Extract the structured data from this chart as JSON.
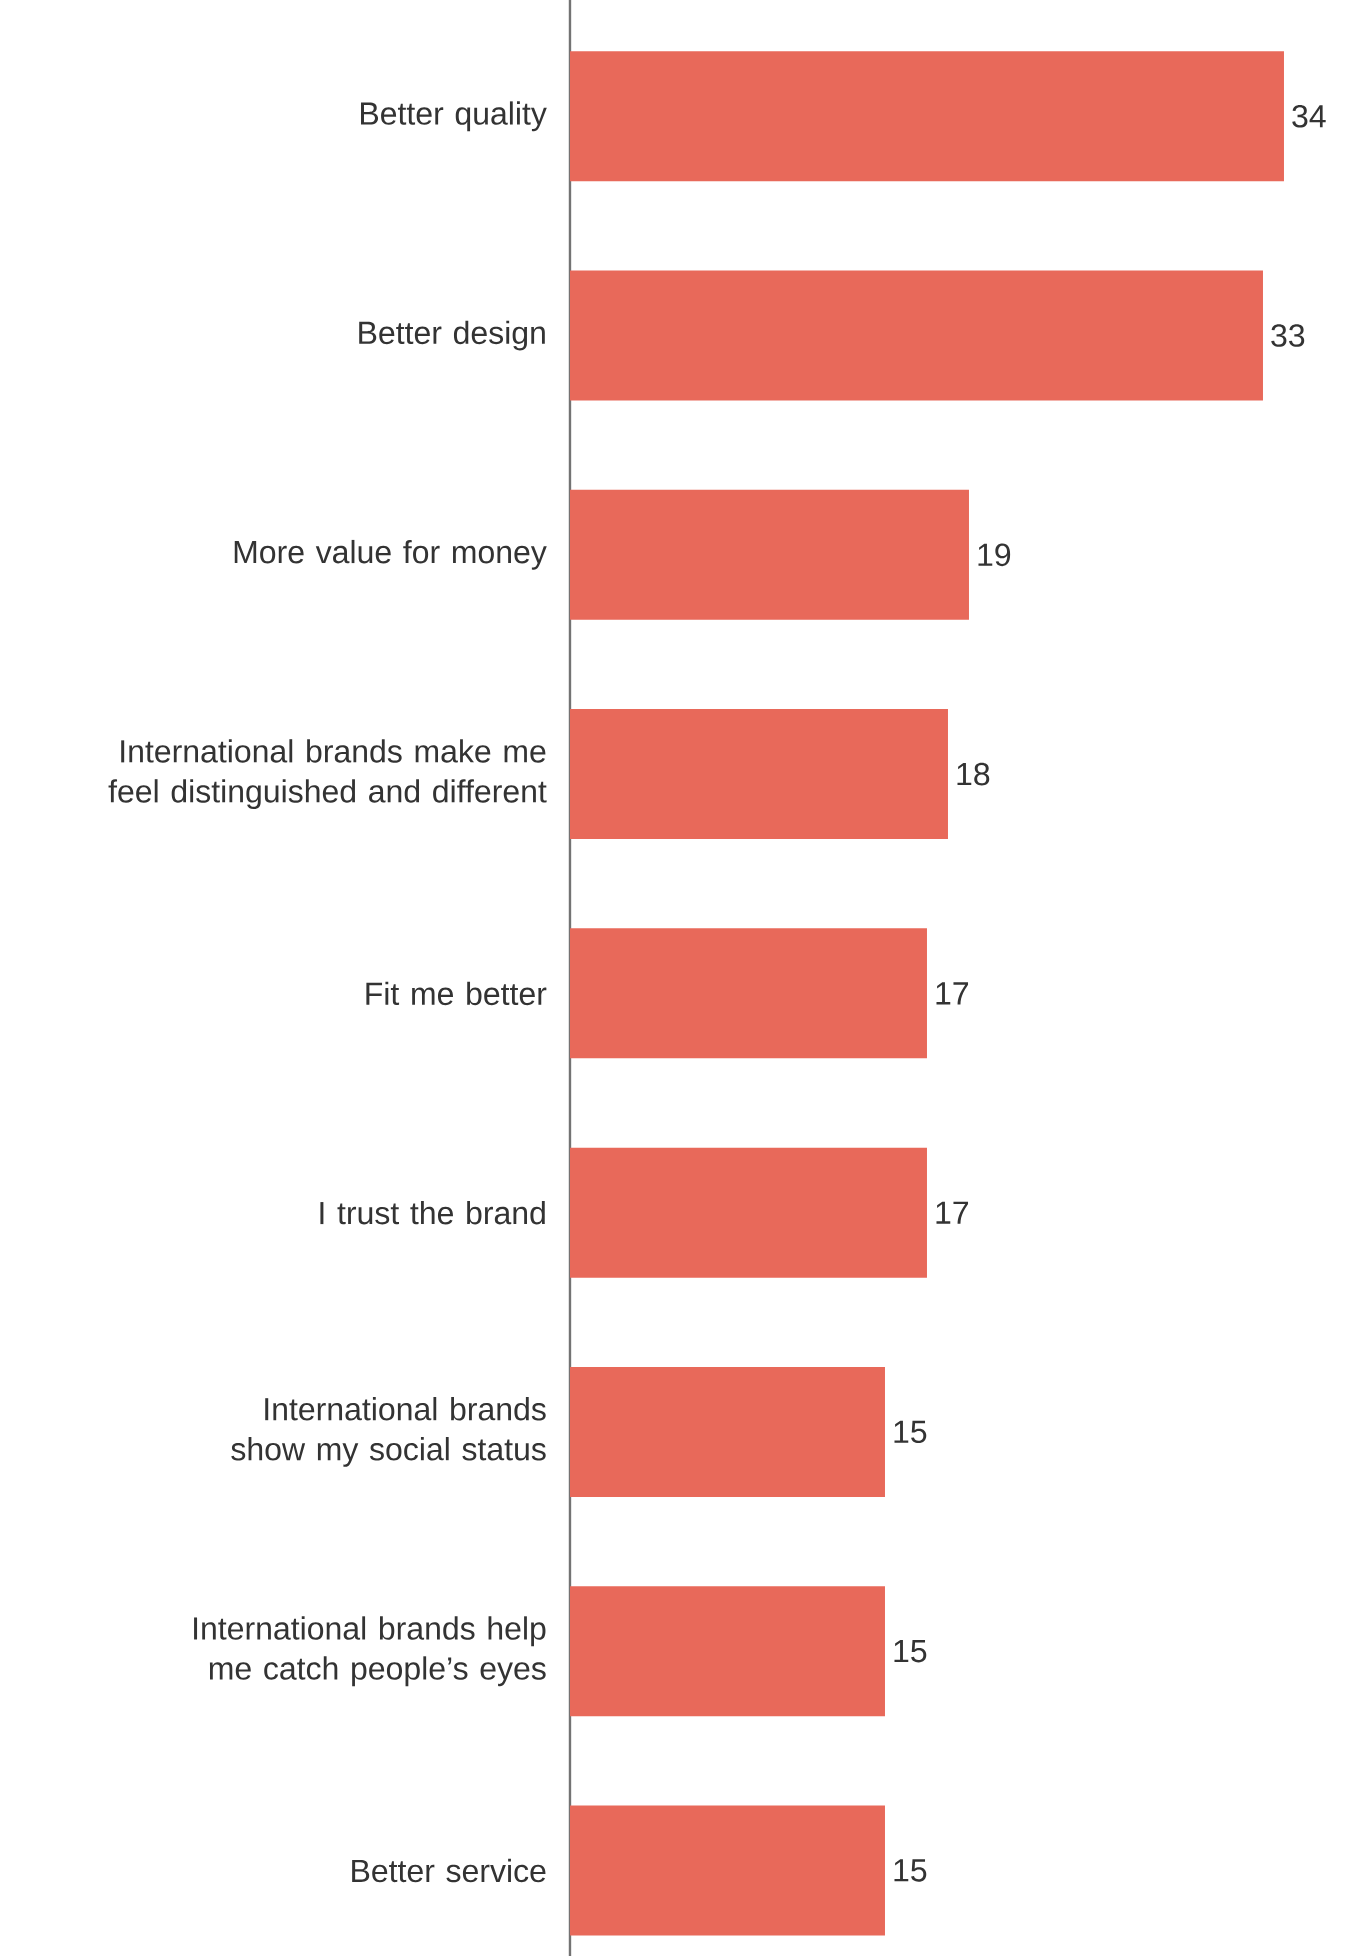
{
  "chart_data": {
    "type": "bar",
    "orientation": "horizontal",
    "categories": [
      "Better quality",
      "Better design",
      "More value for money",
      "International brands make me feel distinguished and different",
      "Fit me better",
      "I trust the brand",
      "International brands show my social status",
      "International brands help me catch people’s eyes",
      "Better service"
    ],
    "values": [
      34,
      33,
      19,
      18,
      17,
      17,
      15,
      15,
      15
    ],
    "color": "#e8695a",
    "data_labels": true
  }
}
